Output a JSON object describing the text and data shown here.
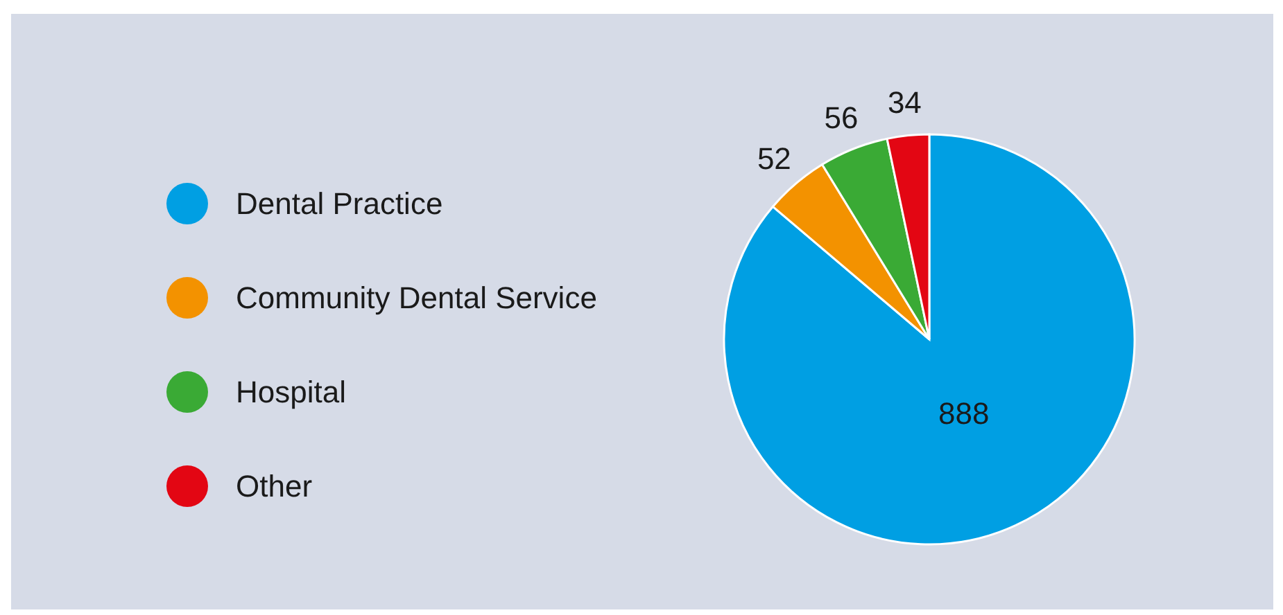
{
  "chart_data": {
    "type": "pie",
    "categories": [
      "Dental Practice",
      "Community Dental Service",
      "Hospital",
      "Other"
    ],
    "values": [
      888,
      52,
      56,
      34
    ],
    "colors": [
      "#009fe3",
      "#f39200",
      "#3aaa35",
      "#e30613"
    ],
    "data_labels": true,
    "legend": "left"
  }
}
